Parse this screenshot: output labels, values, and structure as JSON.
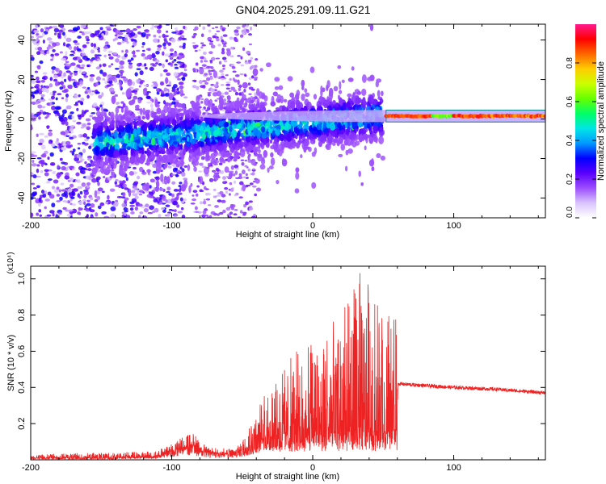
{
  "title": "GN04.2025.291.09.11.G21",
  "chart_data": [
    {
      "type": "heatmap",
      "xlabel": "Height of straight line (km)",
      "ylabel": "Frequency (Hz)",
      "xlim": [
        -200,
        165
      ],
      "ylim": [
        -50,
        48
      ],
      "xticks": [
        -200,
        -100,
        0,
        100
      ],
      "xtick_labels": [
        "-200",
        "-100",
        "0",
        "100"
      ],
      "yticks": [
        -40,
        -20,
        0,
        20,
        40
      ],
      "ytick_labels": [
        "-40",
        "-20",
        "0",
        "20",
        "40"
      ],
      "colorbar": {
        "label": "Normalized spectral amplitude",
        "range": [
          0,
          1
        ],
        "ticks": [
          0.0,
          0.2,
          0.4,
          0.6,
          0.8
        ],
        "tick_labels": [
          "0.0",
          "0.2",
          "0.4",
          "0.6",
          "0.8"
        ],
        "colors": [
          "#ffffff",
          "#d9c4ff",
          "#9b4dff",
          "#5a00ff",
          "#0000ff",
          "#0099ff",
          "#00e6e6",
          "#00ff66",
          "#66ff00",
          "#ccff00",
          "#ffcc00",
          "#ff6600",
          "#ff0000",
          "#ff1a8c"
        ]
      },
      "features": [
        {
          "name": "scattered-noise",
          "x_range": [
            -200,
            -105
          ],
          "f_range": [
            -50,
            48
          ],
          "amplitude": 0.2
        },
        {
          "name": "band",
          "x_range": [
            -155,
            50
          ],
          "f_center": [
            -12,
            2
          ],
          "f_spread": 12,
          "amplitude": 0.3
        },
        {
          "name": "tone",
          "x_range": [
            52,
            165
          ],
          "f_center": 1.5,
          "amplitude": 0.9
        }
      ]
    },
    {
      "type": "line",
      "xlabel": "Height of straight line (km)",
      "ylabel": "SNR (10 * v/v)",
      "scale_label": "(x10⁴)",
      "xlim": [
        -200,
        165
      ],
      "ylim": [
        0,
        1.07
      ],
      "xticks": [
        -200,
        -100,
        0,
        100
      ],
      "xtick_labels": [
        "-200",
        "-100",
        "0",
        "100"
      ],
      "yticks": [
        0.2,
        0.4,
        0.6,
        0.8,
        1.0
      ],
      "ytick_labels": [
        "0.2",
        "0.4",
        "0.6",
        "0.8",
        "1.0"
      ],
      "color": "#ee2222",
      "envelope": {
        "x": [
          -200,
          -150,
          -110,
          -95,
          -85,
          -75,
          -55,
          -45,
          -35,
          -25,
          -15,
          -5,
          5,
          15,
          25,
          35,
          45,
          52,
          60,
          60.5,
          80,
          100,
          130,
          165
        ],
        "base": [
          0.01,
          0.01,
          0.02,
          0.06,
          0.08,
          0.04,
          0.03,
          0.08,
          0.12,
          0.14,
          0.14,
          0.15,
          0.16,
          0.15,
          0.16,
          0.17,
          0.16,
          0.16,
          0.17,
          0.41,
          0.4,
          0.39,
          0.38,
          0.36
        ],
        "peak": [
          0.03,
          0.04,
          0.05,
          0.12,
          0.15,
          0.07,
          0.06,
          0.2,
          0.35,
          0.45,
          0.58,
          0.65,
          0.72,
          0.78,
          0.88,
          1.07,
          0.9,
          0.82,
          0.85,
          0.43,
          0.42,
          0.41,
          0.4,
          0.38
        ]
      }
    }
  ]
}
